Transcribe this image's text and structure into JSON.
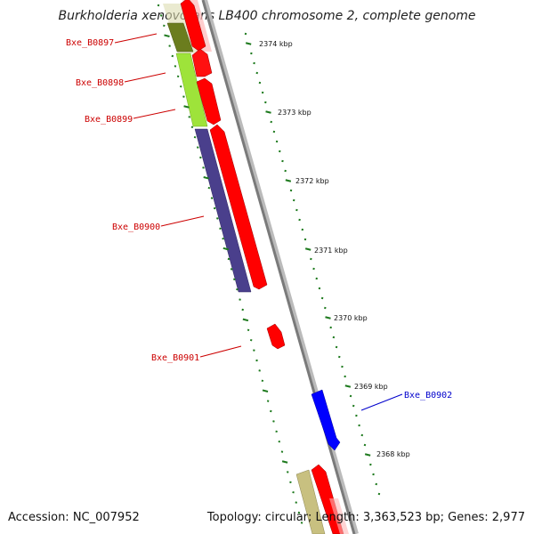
{
  "title": "Burkholderia xenovorans LB400 chromosome 2, complete genome",
  "footer": {
    "accession": "Accession: NC_007952",
    "summary": "Topology: circular; Length: 3,363,523 bp; Genes: 2,977"
  },
  "colors": {
    "axis": "#8a8a8a",
    "tick": "#1e7a1e",
    "forward": "#ff0000",
    "reverse_blue": "#0000ff",
    "label_red": "#cc0000",
    "label_blue": "#0000cc"
  },
  "scale": {
    "labels": [
      "2374 kbp",
      "2373 kbp",
      "2372 kbp",
      "2371 kbp",
      "2370 kbp",
      "2369 kbp",
      "2368 kbp"
    ]
  },
  "genes": [
    {
      "name": "Bxe_B0897",
      "color": "#cc0000"
    },
    {
      "name": "Bxe_B0898",
      "color": "#cc0000"
    },
    {
      "name": "Bxe_B0899",
      "color": "#cc0000"
    },
    {
      "name": "Bxe_B0900",
      "color": "#cc0000"
    },
    {
      "name": "Bxe_B0901",
      "color": "#cc0000"
    },
    {
      "name": "Bxe_B0902",
      "color": "#0000cc"
    }
  ]
}
